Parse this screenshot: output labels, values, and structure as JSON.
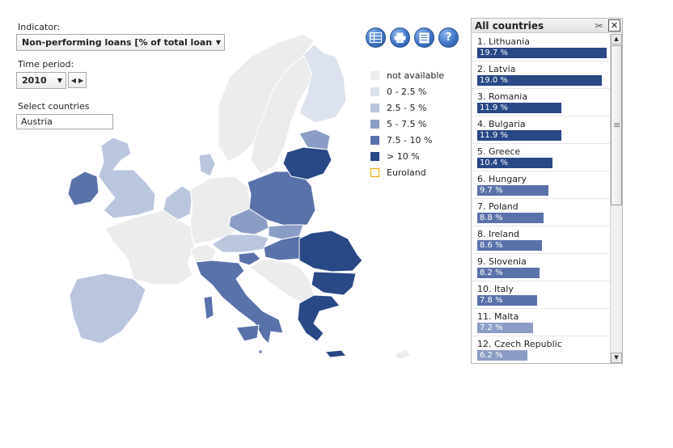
{
  "controls": {
    "indicator_label": "Indicator:",
    "indicator_value": "Non-performing loans [% of total loans]",
    "period_label": "Time period:",
    "period_value": "2010",
    "countries_label": "Select countries",
    "countries_value": "Austria"
  },
  "toolbar": {
    "export_icon": "excel-export-icon",
    "print_icon": "print-icon",
    "table_icon": "data-table-icon",
    "help_label": "?"
  },
  "legend": [
    {
      "label": "not available",
      "color": "#ececec"
    },
    {
      "label": "0 - 2.5 %",
      "color": "#dce3ee"
    },
    {
      "label": "2.5 - 5 %",
      "color": "#b9c6de"
    },
    {
      "label": "5 - 7.5 %",
      "color": "#8b9dc5"
    },
    {
      "label": "7.5 - 10 %",
      "color": "#5a72aa"
    },
    {
      "label": "> 10 %",
      "color": "#284886"
    },
    {
      "label": "Euroland",
      "color": "#e8a400"
    }
  ],
  "panel": {
    "title": "All countries",
    "rows": [
      {
        "label": "1. Lithuania",
        "value": "19.7 %",
        "fraction": 1.0,
        "color": "#284886"
      },
      {
        "label": "2. Latvia",
        "value": "19.0 %",
        "fraction": 0.964,
        "color": "#284886"
      },
      {
        "label": "3. Romania",
        "value": "11.9 %",
        "fraction": 0.65,
        "color": "#284886"
      },
      {
        "label": "4. Bulgaria",
        "value": "11.9 %",
        "fraction": 0.65,
        "color": "#284886"
      },
      {
        "label": "5. Greece",
        "value": "10.4 %",
        "fraction": 0.58,
        "color": "#284886"
      },
      {
        "label": "6. Hungary",
        "value": "9.7 %",
        "fraction": 0.55,
        "color": "#5a72aa"
      },
      {
        "label": "7. Poland",
        "value": "8.8 %",
        "fraction": 0.51,
        "color": "#5a72aa"
      },
      {
        "label": "8. Ireland",
        "value": "8.6 %",
        "fraction": 0.5,
        "color": "#5a72aa"
      },
      {
        "label": "9. Slovenia",
        "value": "8.2 %",
        "fraction": 0.48,
        "color": "#5a72aa"
      },
      {
        "label": "10. Italy",
        "value": "7.8 %",
        "fraction": 0.46,
        "color": "#5a72aa"
      },
      {
        "label": "11. Malta",
        "value": "7.2 %",
        "fraction": 0.43,
        "color": "#8b9dc5"
      },
      {
        "label": "12. Czech Republic",
        "value": "6.2 %",
        "fraction": 0.39,
        "color": "#8b9dc5"
      }
    ]
  },
  "map": {
    "regions": [
      {
        "name": "norway",
        "color": "#ececec"
      },
      {
        "name": "sweden",
        "color": "#ececec"
      },
      {
        "name": "finland",
        "color": "#dce3ee"
      },
      {
        "name": "iceland-uk",
        "color": "#b9c6de"
      },
      {
        "name": "ireland",
        "color": "#5a72aa"
      },
      {
        "name": "denmark",
        "color": "#b9c6de"
      },
      {
        "name": "benelux",
        "color": "#b9c6de"
      },
      {
        "name": "france",
        "color": "#ececec"
      },
      {
        "name": "iberia",
        "color": "#b9c6de"
      },
      {
        "name": "germany",
        "color": "#ececec"
      },
      {
        "name": "poland",
        "color": "#5a72aa"
      },
      {
        "name": "czech",
        "color": "#8b9dc5"
      },
      {
        "name": "slovakia",
        "color": "#8b9dc5"
      },
      {
        "name": "austria",
        "color": "#b9c6de"
      },
      {
        "name": "switzerland",
        "color": "#ececec"
      },
      {
        "name": "hungary",
        "color": "#5a72aa"
      },
      {
        "name": "slovenia",
        "color": "#5a72aa"
      },
      {
        "name": "italy",
        "color": "#5a72aa"
      },
      {
        "name": "balkans",
        "color": "#ececec"
      },
      {
        "name": "romania",
        "color": "#284886"
      },
      {
        "name": "bulgaria",
        "color": "#284886"
      },
      {
        "name": "greece",
        "color": "#284886"
      },
      {
        "name": "latvia-lithuania",
        "color": "#284886"
      },
      {
        "name": "estonia",
        "color": "#8b9dc5"
      },
      {
        "name": "cyprus",
        "color": "#ececec"
      },
      {
        "name": "malta",
        "color": "#8b9dc5"
      }
    ]
  }
}
